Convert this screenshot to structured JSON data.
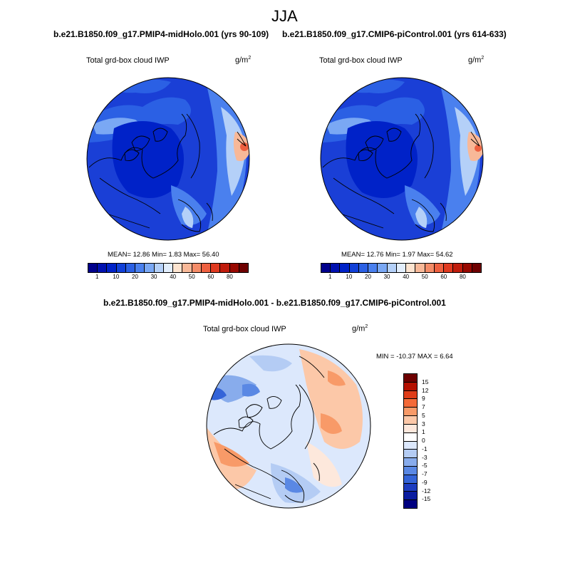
{
  "figure": {
    "title": "JJA",
    "panels": [
      {
        "subtitle": "b.e21.B1850.f09_g17.PMIP4-midHolo.001 (yrs 90-109)",
        "label": "Total grd-box cloud IWP",
        "units_base": "g/m",
        "units_exp": "2",
        "stats": "MEAN=  12.86  Min=   1.83  Max=  56.40"
      },
      {
        "subtitle": "b.e21.B1850.f09_g17.CMIP6-piControl.001 (yrs 614-633)",
        "label": "Total grd-box cloud IWP",
        "units_base": "g/m",
        "units_exp": "2",
        "stats": "MEAN=  12.76  Min=   1.97  Max=  54.62"
      }
    ],
    "diff": {
      "subtitle": "b.e21.B1850.f09_g17.PMIP4-midHolo.001 - b.e21.B1850.f09_g17.CMIP6-piControl.001",
      "label": "Total grd-box cloud IWP",
      "units_base": "g/m",
      "units_exp": "2",
      "stats": "MIN = -10.37 MAX =   6.64"
    }
  },
  "chart_data": [
    {
      "type": "heatmap",
      "projection": "north-polar-stereographic",
      "title": "b.e21.B1850.f09_g17.PMIP4-midHolo.001 (yrs 90-109)",
      "variable": "Total grd-box cloud IWP",
      "units": "g/m2",
      "mean": 12.86,
      "min": 1.83,
      "max": 56.4,
      "colorbar_levels": [
        1,
        10,
        20,
        30,
        40,
        50,
        60,
        80
      ]
    },
    {
      "type": "heatmap",
      "projection": "north-polar-stereographic",
      "title": "b.e21.B1850.f09_g17.CMIP6-piControl.001 (yrs 614-633)",
      "variable": "Total grd-box cloud IWP",
      "units": "g/m2",
      "mean": 12.76,
      "min": 1.97,
      "max": 54.62,
      "colorbar_levels": [
        1,
        10,
        20,
        30,
        40,
        50,
        60,
        80
      ]
    },
    {
      "type": "heatmap",
      "projection": "north-polar-stereographic",
      "title": "b.e21.B1850.f09_g17.PMIP4-midHolo.001 - b.e21.B1850.f09_g17.CMIP6-piControl.001",
      "variable": "Total grd-box cloud IWP",
      "units": "g/m2",
      "min": -10.37,
      "max": 6.64,
      "colorbar_levels": [
        15,
        12,
        9,
        7,
        5,
        3,
        1,
        0,
        -1,
        -3,
        -5,
        -7,
        -9,
        -12,
        -15
      ]
    }
  ],
  "colors": {
    "seq": [
      "#00008c",
      "#0011b0",
      "#0022c8",
      "#1140d8",
      "#2b60e4",
      "#4a80ee",
      "#7aa8f4",
      "#b4d0f8",
      "#e2eefc",
      "#fde4d0",
      "#f8b898",
      "#f48c68",
      "#ee6040",
      "#e03a20",
      "#c01c0c",
      "#980800",
      "#6e0000"
    ],
    "div": [
      "#6e0000",
      "#b41000",
      "#e03c18",
      "#f46a38",
      "#f89a68",
      "#fcc8a8",
      "#fde8dc",
      "#ffffff",
      "#dce8fc",
      "#b4ccf4",
      "#88acec",
      "#5a88e4",
      "#3464d8",
      "#1c3cc0",
      "#0a1ca0",
      "#000080"
    ]
  }
}
